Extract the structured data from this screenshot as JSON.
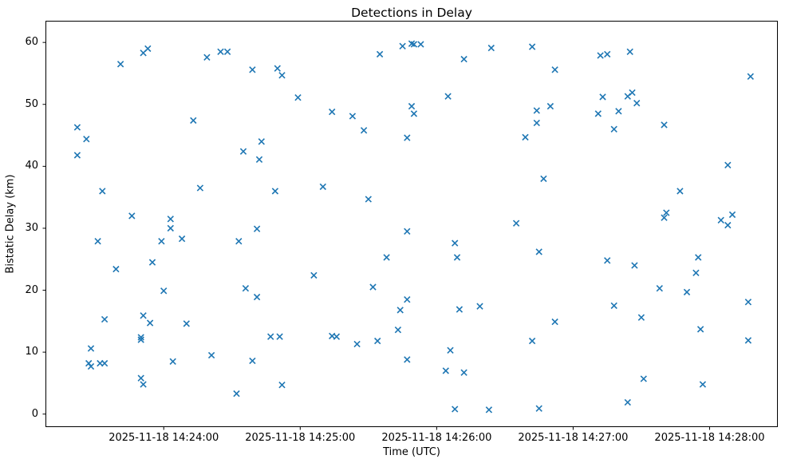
{
  "chart_data": {
    "type": "scatter",
    "title": "Detections in Delay",
    "xlabel": "Time (UTC)",
    "ylabel": "Bistatic Delay (km)",
    "marker": "x",
    "marker_color": "#1f77b4",
    "spine_color": "#000000",
    "background_color": "#ffffff",
    "grid": false,
    "legend": null,
    "xlim": [
      "14:23:08",
      "14:28:30"
    ],
    "ylim": [
      -2.1,
      63.5
    ],
    "x_ticks": [
      {
        "time": "14:24:00",
        "label": "2025-11-18 14:24:00"
      },
      {
        "time": "14:25:00",
        "label": "2025-11-18 14:25:00"
      },
      {
        "time": "14:26:00",
        "label": "2025-11-18 14:26:00"
      },
      {
        "time": "14:27:00",
        "label": "2025-11-18 14:27:00"
      },
      {
        "time": "14:28:00",
        "label": "2025-11-18 14:28:00"
      }
    ],
    "y_ticks": [
      0,
      10,
      20,
      30,
      40,
      50,
      60
    ],
    "points": [
      [
        "14:23:22",
        46.3
      ],
      [
        "14:23:22",
        41.8
      ],
      [
        "14:23:26",
        44.4
      ],
      [
        "14:23:27",
        8.2
      ],
      [
        "14:23:28",
        10.6
      ],
      [
        "14:23:28",
        7.7
      ],
      [
        "14:23:31",
        27.9
      ],
      [
        "14:23:32",
        8.2
      ],
      [
        "14:23:33",
        36.0
      ],
      [
        "14:23:34",
        15.3
      ],
      [
        "14:23:34",
        8.2
      ],
      [
        "14:23:39",
        23.4
      ],
      [
        "14:23:41",
        56.5
      ],
      [
        "14:23:46",
        32.0
      ],
      [
        "14:23:50",
        12.4
      ],
      [
        "14:23:50",
        12.0
      ],
      [
        "14:23:50",
        5.8
      ],
      [
        "14:23:51",
        58.3
      ],
      [
        "14:23:51",
        15.9
      ],
      [
        "14:23:51",
        4.8
      ],
      [
        "14:23:53",
        59.0
      ],
      [
        "14:23:54",
        14.7
      ],
      [
        "14:23:55",
        24.5
      ],
      [
        "14:23:59",
        27.9
      ],
      [
        "14:24:00",
        19.9
      ],
      [
        "14:24:03",
        31.5
      ],
      [
        "14:24:03",
        30.0
      ],
      [
        "14:24:04",
        8.5
      ],
      [
        "14:24:08",
        28.3
      ],
      [
        "14:24:10",
        14.6
      ],
      [
        "14:24:13",
        47.4
      ],
      [
        "14:24:16",
        36.5
      ],
      [
        "14:24:19",
        57.6
      ],
      [
        "14:24:21",
        9.5
      ],
      [
        "14:24:25",
        58.5
      ],
      [
        "14:24:28",
        58.5
      ],
      [
        "14:24:32",
        3.3
      ],
      [
        "14:24:33",
        27.9
      ],
      [
        "14:24:35",
        42.4
      ],
      [
        "14:24:36",
        20.3
      ],
      [
        "14:24:39",
        55.6
      ],
      [
        "14:24:39",
        8.6
      ],
      [
        "14:24:41",
        29.9
      ],
      [
        "14:24:41",
        18.9
      ],
      [
        "14:24:42",
        41.1
      ],
      [
        "14:24:43",
        44.0
      ],
      [
        "14:24:47",
        12.5
      ],
      [
        "14:24:49",
        36.0
      ],
      [
        "14:24:50",
        55.8
      ],
      [
        "14:24:51",
        12.5
      ],
      [
        "14:24:52",
        54.7
      ],
      [
        "14:24:52",
        4.7
      ],
      [
        "14:24:59",
        51.1
      ],
      [
        "14:25:06",
        22.4
      ],
      [
        "14:25:10",
        36.7
      ],
      [
        "14:25:14",
        48.8
      ],
      [
        "14:25:14",
        12.6
      ],
      [
        "14:25:16",
        12.5
      ],
      [
        "14:25:23",
        48.1
      ],
      [
        "14:25:25",
        11.3
      ],
      [
        "14:25:28",
        45.8
      ],
      [
        "14:25:30",
        34.7
      ],
      [
        "14:25:32",
        20.5
      ],
      [
        "14:25:34",
        11.8
      ],
      [
        "14:25:35",
        58.1
      ],
      [
        "14:25:38",
        25.3
      ],
      [
        "14:25:43",
        13.6
      ],
      [
        "14:25:44",
        16.8
      ],
      [
        "14:25:45",
        59.4
      ],
      [
        "14:25:47",
        44.6
      ],
      [
        "14:25:47",
        29.5
      ],
      [
        "14:25:47",
        18.5
      ],
      [
        "14:25:47",
        8.8
      ],
      [
        "14:25:49",
        59.8
      ],
      [
        "14:25:49",
        49.7
      ],
      [
        "14:25:50",
        59.7
      ],
      [
        "14:25:50",
        48.5
      ],
      [
        "14:25:53",
        59.7
      ],
      [
        "14:26:04",
        7.0
      ],
      [
        "14:26:05",
        51.3
      ],
      [
        "14:26:06",
        10.3
      ],
      [
        "14:26:08",
        27.6
      ],
      [
        "14:26:08",
        0.8
      ],
      [
        "14:26:09",
        25.3
      ],
      [
        "14:26:10",
        16.9
      ],
      [
        "14:26:12",
        57.3
      ],
      [
        "14:26:12",
        6.7
      ],
      [
        "14:26:19",
        17.4
      ],
      [
        "14:26:23",
        0.7
      ],
      [
        "14:26:24",
        59.1
      ],
      [
        "14:26:35",
        30.8
      ],
      [
        "14:26:39",
        44.7
      ],
      [
        "14:26:42",
        59.3
      ],
      [
        "14:26:42",
        11.8
      ],
      [
        "14:26:44",
        49.0
      ],
      [
        "14:26:44",
        47.0
      ],
      [
        "14:26:45",
        26.2
      ],
      [
        "14:26:45",
        0.9
      ],
      [
        "14:26:47",
        38.0
      ],
      [
        "14:26:50",
        49.7
      ],
      [
        "14:26:52",
        55.6
      ],
      [
        "14:26:52",
        14.9
      ],
      [
        "14:27:11",
        48.5
      ],
      [
        "14:27:12",
        57.9
      ],
      [
        "14:27:13",
        51.2
      ],
      [
        "14:27:15",
        58.1
      ],
      [
        "14:27:15",
        24.8
      ],
      [
        "14:27:18",
        46.0
      ],
      [
        "14:27:18",
        17.5
      ],
      [
        "14:27:20",
        48.9
      ],
      [
        "14:27:24",
        51.3
      ],
      [
        "14:27:24",
        1.9
      ],
      [
        "14:27:25",
        58.5
      ],
      [
        "14:27:26",
        51.9
      ],
      [
        "14:27:27",
        24.0
      ],
      [
        "14:27:28",
        50.2
      ],
      [
        "14:27:30",
        15.6
      ],
      [
        "14:27:31",
        5.7
      ],
      [
        "14:27:38",
        20.3
      ],
      [
        "14:27:40",
        46.7
      ],
      [
        "14:27:40",
        31.7
      ],
      [
        "14:27:41",
        32.5
      ],
      [
        "14:27:47",
        36.0
      ],
      [
        "14:27:50",
        19.7
      ],
      [
        "14:27:54",
        22.8
      ],
      [
        "14:27:55",
        25.3
      ],
      [
        "14:27:56",
        13.7
      ],
      [
        "14:27:57",
        4.8
      ],
      [
        "14:28:05",
        31.3
      ],
      [
        "14:28:08",
        40.2
      ],
      [
        "14:28:08",
        30.5
      ],
      [
        "14:28:10",
        32.2
      ],
      [
        "14:28:17",
        18.1
      ],
      [
        "14:28:17",
        11.9
      ],
      [
        "14:28:18",
        54.5
      ]
    ]
  }
}
